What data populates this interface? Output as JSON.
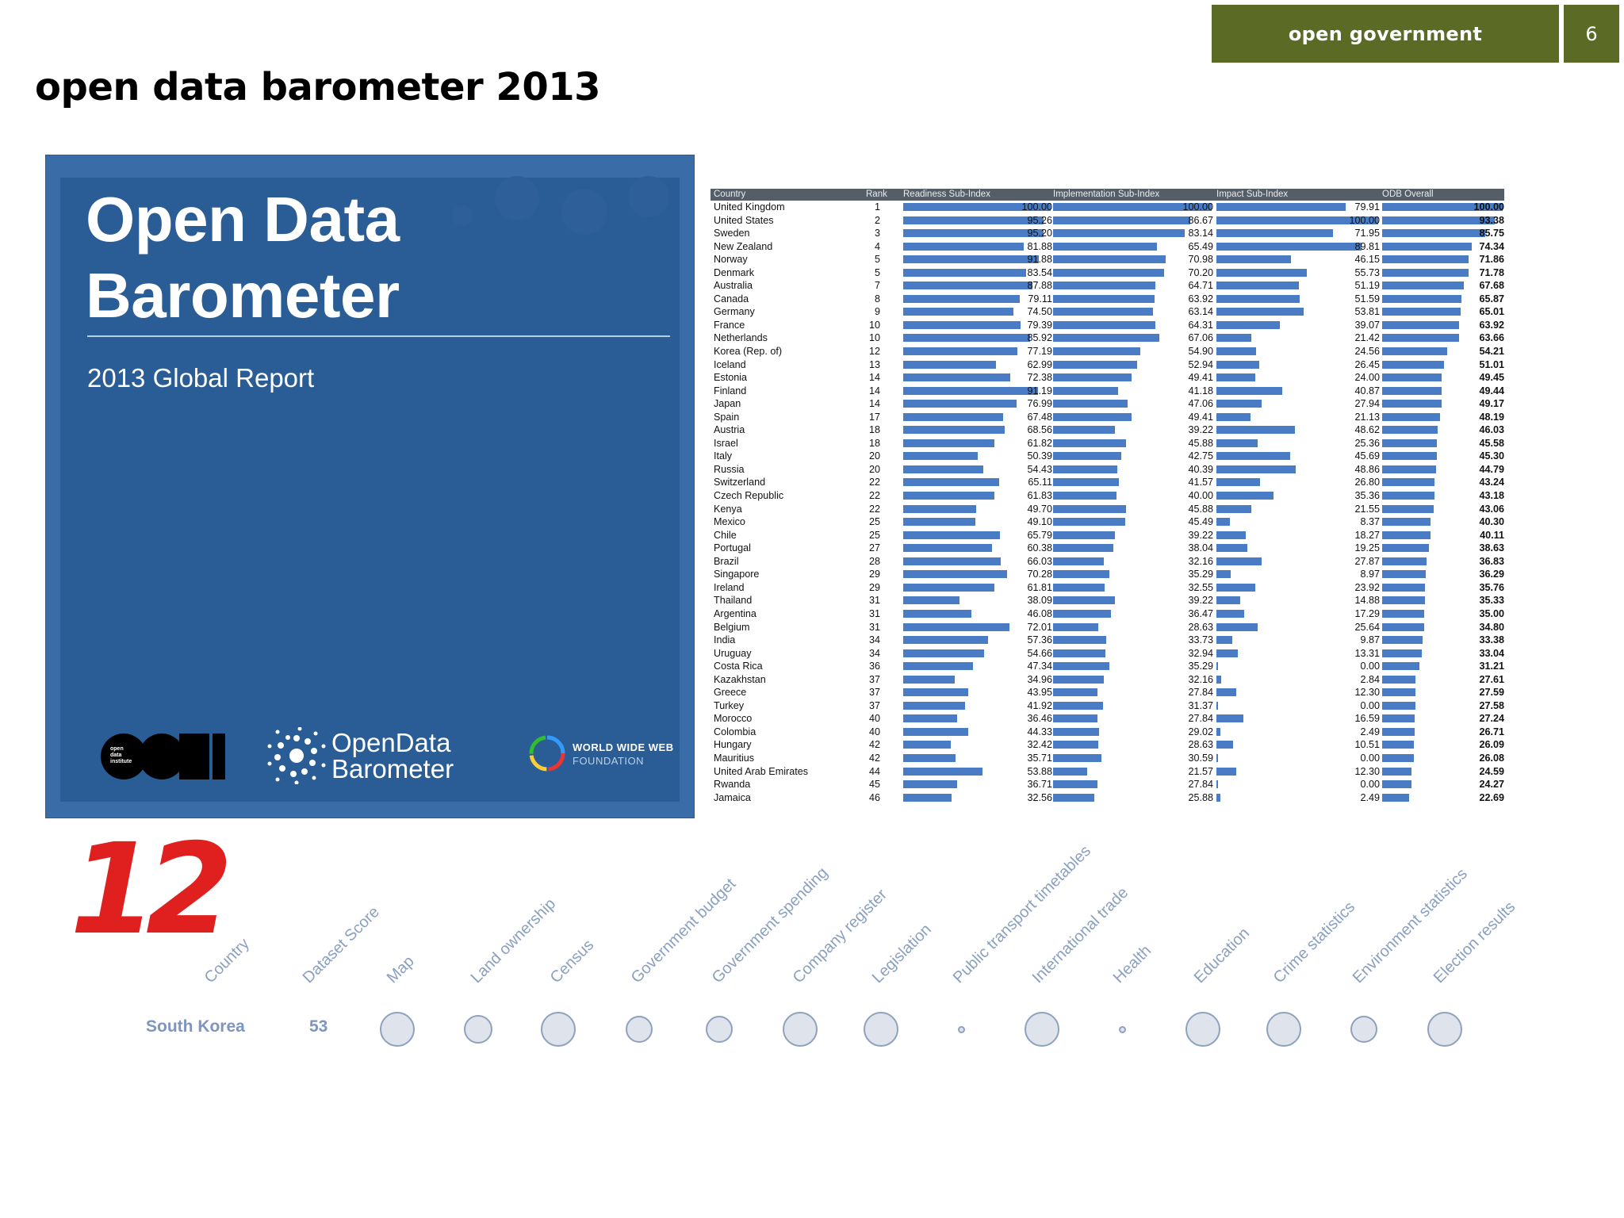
{
  "header": {
    "section": "open government",
    "page_number": "6"
  },
  "title": "open data barometer 2013",
  "cover": {
    "title_line1": "Open Data",
    "title_line2": "Barometer",
    "subtitle": "2013 Global Report",
    "logo_odi_text": "open data institute",
    "logo_odi_letters": "ODI",
    "logo_odb_line1": "OpenData",
    "logo_odb_line2": "Barometer",
    "logo_www_line1": "WORLD WIDE WEB",
    "logo_www_line2": "FOUNDATION"
  },
  "table": {
    "headers": [
      "Country",
      "Rank",
      "Readiness Sub-Index",
      "Implementation Sub-Index",
      "Impact Sub-Index",
      "ODB Overall"
    ],
    "rows": [
      [
        "United Kingdom",
        "1",
        "100.00",
        "100.00",
        "79.91",
        "100.00"
      ],
      [
        "United States",
        "2",
        "95.26",
        "86.67",
        "100.00",
        "93.38"
      ],
      [
        "Sweden",
        "3",
        "95.20",
        "83.14",
        "71.95",
        "85.75"
      ],
      [
        "New Zealand",
        "4",
        "81.88",
        "65.49",
        "89.81",
        "74.34"
      ],
      [
        "Norway",
        "5",
        "91.88",
        "70.98",
        "46.15",
        "71.86"
      ],
      [
        "Denmark",
        "5",
        "83.54",
        "70.20",
        "55.73",
        "71.78"
      ],
      [
        "Australia",
        "7",
        "87.88",
        "64.71",
        "51.19",
        "67.68"
      ],
      [
        "Canada",
        "8",
        "79.11",
        "63.92",
        "51.59",
        "65.87"
      ],
      [
        "Germany",
        "9",
        "74.50",
        "63.14",
        "53.81",
        "65.01"
      ],
      [
        "France",
        "10",
        "79.39",
        "64.31",
        "39.07",
        "63.92"
      ],
      [
        "Netherlands",
        "10",
        "85.92",
        "67.06",
        "21.42",
        "63.66"
      ],
      [
        "Korea (Rep. of)",
        "12",
        "77.19",
        "54.90",
        "24.56",
        "54.21"
      ],
      [
        "Iceland",
        "13",
        "62.99",
        "52.94",
        "26.45",
        "51.01"
      ],
      [
        "Estonia",
        "14",
        "72.38",
        "49.41",
        "24.00",
        "49.45"
      ],
      [
        "Finland",
        "14",
        "91.19",
        "41.18",
        "40.87",
        "49.44"
      ],
      [
        "Japan",
        "14",
        "76.99",
        "47.06",
        "27.94",
        "49.17"
      ],
      [
        "Spain",
        "17",
        "67.48",
        "49.41",
        "21.13",
        "48.19"
      ],
      [
        "Austria",
        "18",
        "68.56",
        "39.22",
        "48.62",
        "46.03"
      ],
      [
        "Israel",
        "18",
        "61.82",
        "45.88",
        "25.36",
        "45.58"
      ],
      [
        "Italy",
        "20",
        "50.39",
        "42.75",
        "45.69",
        "45.30"
      ],
      [
        "Russia",
        "20",
        "54.43",
        "40.39",
        "48.86",
        "44.79"
      ],
      [
        "Switzerland",
        "22",
        "65.11",
        "41.57",
        "26.80",
        "43.24"
      ],
      [
        "Czech Republic",
        "22",
        "61.83",
        "40.00",
        "35.36",
        "43.18"
      ],
      [
        "Kenya",
        "22",
        "49.70",
        "45.88",
        "21.55",
        "43.06"
      ],
      [
        "Mexico",
        "25",
        "49.10",
        "45.49",
        "8.37",
        "40.30"
      ],
      [
        "Chile",
        "25",
        "65.79",
        "39.22",
        "18.27",
        "40.11"
      ],
      [
        "Portugal",
        "27",
        "60.38",
        "38.04",
        "19.25",
        "38.63"
      ],
      [
        "Brazil",
        "28",
        "66.03",
        "32.16",
        "27.87",
        "36.83"
      ],
      [
        "Singapore",
        "29",
        "70.28",
        "35.29",
        "8.97",
        "36.29"
      ],
      [
        "Ireland",
        "29",
        "61.81",
        "32.55",
        "23.92",
        "35.76"
      ],
      [
        "Thailand",
        "31",
        "38.09",
        "39.22",
        "14.88",
        "35.33"
      ],
      [
        "Argentina",
        "31",
        "46.08",
        "36.47",
        "17.29",
        "35.00"
      ],
      [
        "Belgium",
        "31",
        "72.01",
        "28.63",
        "25.64",
        "34.80"
      ],
      [
        "India",
        "34",
        "57.36",
        "33.73",
        "9.87",
        "33.38"
      ],
      [
        "Uruguay",
        "34",
        "54.66",
        "32.94",
        "13.31",
        "33.04"
      ],
      [
        "Costa Rica",
        "36",
        "47.34",
        "35.29",
        "0.00",
        "31.21"
      ],
      [
        "Kazakhstan",
        "37",
        "34.96",
        "32.16",
        "2.84",
        "27.61"
      ],
      [
        "Greece",
        "37",
        "43.95",
        "27.84",
        "12.30",
        "27.59"
      ],
      [
        "Turkey",
        "37",
        "41.92",
        "31.37",
        "0.00",
        "27.58"
      ],
      [
        "Morocco",
        "40",
        "36.46",
        "27.84",
        "16.59",
        "27.24"
      ],
      [
        "Colombia",
        "40",
        "44.33",
        "29.02",
        "2.49",
        "26.71"
      ],
      [
        "Hungary",
        "42",
        "32.42",
        "28.63",
        "10.51",
        "26.09"
      ],
      [
        "Mauritius",
        "42",
        "35.71",
        "30.59",
        "0.00",
        "26.08"
      ],
      [
        "United Arab Emirates",
        "44",
        "53.88",
        "21.57",
        "12.30",
        "24.59"
      ],
      [
        "Rwanda",
        "45",
        "36.71",
        "27.84",
        "0.00",
        "24.27"
      ],
      [
        "Jamaica",
        "46",
        "32.56",
        "25.88",
        "2.49",
        "22.69"
      ]
    ]
  },
  "dataset_scores": {
    "rank": "12",
    "columns": [
      "Country",
      "Dataset Score",
      "Map",
      "Land ownership",
      "Census",
      "Government budget",
      "Government spending",
      "Company register",
      "Legislation",
      "Public transport timetables",
      "International trade",
      "Health",
      "Education",
      "Crime statistics",
      "Environment statistics",
      "Election results"
    ],
    "country": "South Korea",
    "score": "53",
    "circle_levels": [
      0.85,
      0.7,
      0.85,
      0.65,
      0.65,
      0.85,
      0.85,
      0.18,
      0.85,
      0.18,
      0.85,
      0.85,
      0.65,
      0.85
    ]
  }
}
